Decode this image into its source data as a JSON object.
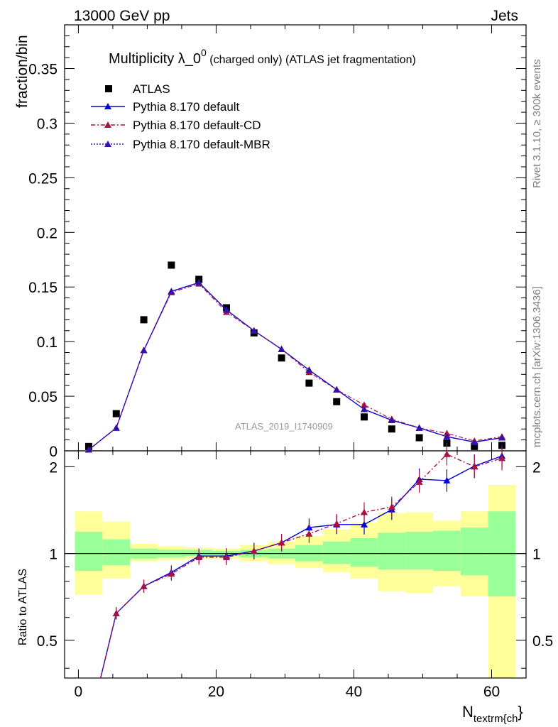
{
  "header": {
    "left": "13000 GeV pp",
    "right": "Jets"
  },
  "side_labels": {
    "rivet": "Rivet 3.1.10, ≥ 300k events",
    "mcplots": "mcplots.cern.ch [arXiv:1306.3436]"
  },
  "chart_data": [
    {
      "type": "line",
      "title": "Multiplicity λ_0",
      "title_sup": "0",
      "title_suffix": " (charged only) (ATLAS jet fragmentation)",
      "ylabel": "fraction/bin",
      "watermark": "ATLAS_2019_I1740909",
      "xlim": [
        -2,
        65
      ],
      "ylim": [
        0,
        0.39
      ],
      "yticks": [
        0,
        0.05,
        0.1,
        0.15,
        0.2,
        0.25,
        0.3,
        0.35
      ],
      "ytick_labels": [
        "0",
        "0.05",
        "0.1",
        "0.15",
        "0.2",
        "0.25",
        "0.3",
        "0.35"
      ],
      "legend": [
        "ATLAS",
        "Pythia 8.170 default",
        "Pythia 8.170 default-CD",
        "Pythia 8.170 default-MBR"
      ],
      "legend_position": "top-left",
      "x": [
        1.5,
        5.5,
        9.5,
        13.5,
        17.5,
        21.5,
        25.5,
        29.5,
        33.5,
        37.5,
        41.5,
        45.5,
        49.5,
        53.5,
        57.5,
        61.5
      ],
      "series": [
        {
          "name": "ATLAS",
          "color": "#000000",
          "values": [
            0.004,
            0.034,
            0.12,
            0.17,
            0.157,
            0.131,
            0.108,
            0.085,
            0.062,
            0.045,
            0.031,
            0.02,
            0.012,
            0.007,
            0.004,
            0.005
          ]
        },
        {
          "name": "Pythia 8.170 default",
          "color": "#0000dd",
          "values": [
            0.001,
            0.021,
            0.092,
            0.146,
            0.154,
            0.129,
            0.11,
            0.093,
            0.074,
            0.056,
            0.038,
            0.028,
            0.021,
            0.013,
            0.008,
            0.012
          ]
        },
        {
          "name": "Pythia 8.170 default-CD",
          "color": "#aa1144",
          "values": [
            0.001,
            0.021,
            0.092,
            0.145,
            0.153,
            0.127,
            0.11,
            0.093,
            0.072,
            0.056,
            0.042,
            0.029,
            0.021,
            0.016,
            0.009,
            0.013
          ]
        },
        {
          "name": "Pythia 8.170 default-MBR",
          "color": "#3311aa",
          "values": [
            0.001,
            0.021,
            0.092,
            0.146,
            0.154,
            0.129,
            0.11,
            0.093,
            0.074,
            0.056,
            0.038,
            0.028,
            0.021,
            0.013,
            0.008,
            0.012
          ]
        }
      ]
    },
    {
      "type": "line",
      "ylabel": "Ratio to ATLAS",
      "xlabel": "N",
      "xlabel_sub": "textrm{ch",
      "xlabel_close": "}",
      "xlim": [
        -2,
        65
      ],
      "ylim": [
        0.37,
        2.27
      ],
      "yticks": [
        0.5,
        1,
        2
      ],
      "ytick_labels": [
        "0.5",
        "1",
        "2"
      ],
      "xticks": [
        0,
        20,
        40,
        60
      ],
      "xtick_labels": [
        "0",
        "20",
        "40",
        "60"
      ],
      "x": [
        1.5,
        5.5,
        9.5,
        13.5,
        17.5,
        21.5,
        25.5,
        29.5,
        33.5,
        37.5,
        41.5,
        45.5,
        49.5,
        53.5,
        57.5,
        61.5
      ],
      "bands": {
        "x_edges": [
          -0.5,
          3.5,
          7.5,
          11.5,
          15.5,
          19.5,
          23.5,
          27.5,
          31.5,
          35.5,
          39.5,
          43.5,
          47.5,
          51.5,
          55.5,
          59.5,
          63.5
        ],
        "green_low": [
          0.87,
          0.91,
          0.96,
          0.97,
          0.98,
          0.98,
          0.97,
          0.96,
          0.94,
          0.92,
          0.9,
          0.88,
          0.88,
          0.87,
          0.84,
          0.71
        ],
        "green_high": [
          1.19,
          1.12,
          1.04,
          1.03,
          1.03,
          1.02,
          1.03,
          1.04,
          1.07,
          1.1,
          1.13,
          1.18,
          1.19,
          1.2,
          1.23,
          1.4
        ],
        "yellow_low": [
          0.72,
          0.82,
          0.94,
          0.95,
          0.96,
          0.96,
          0.94,
          0.92,
          0.89,
          0.86,
          0.82,
          0.74,
          0.73,
          0.77,
          0.71,
          0.37
        ],
        "yellow_high": [
          1.4,
          1.29,
          1.08,
          1.06,
          1.05,
          1.04,
          1.07,
          1.1,
          1.15,
          1.21,
          1.28,
          1.38,
          1.39,
          1.3,
          1.4,
          1.73
        ],
        "green_color": "#99ff99",
        "yellow_color": "#ffff99"
      },
      "series": [
        {
          "name": "Pythia 8.170 default",
          "color": "#0000dd",
          "values": [
            0.25,
            0.62,
            0.77,
            0.86,
            0.98,
            0.98,
            1.02,
            1.09,
            1.23,
            1.26,
            1.26,
            1.42,
            1.81,
            1.79,
            2.01,
            2.18
          ]
        },
        {
          "name": "Pythia 8.170 default-CD",
          "color": "#aa1144",
          "values": [
            0.25,
            0.62,
            0.77,
            0.85,
            0.97,
            0.97,
            1.02,
            1.09,
            1.17,
            1.27,
            1.39,
            1.45,
            1.77,
            2.21,
            2.0,
            2.14
          ]
        }
      ]
    }
  ]
}
